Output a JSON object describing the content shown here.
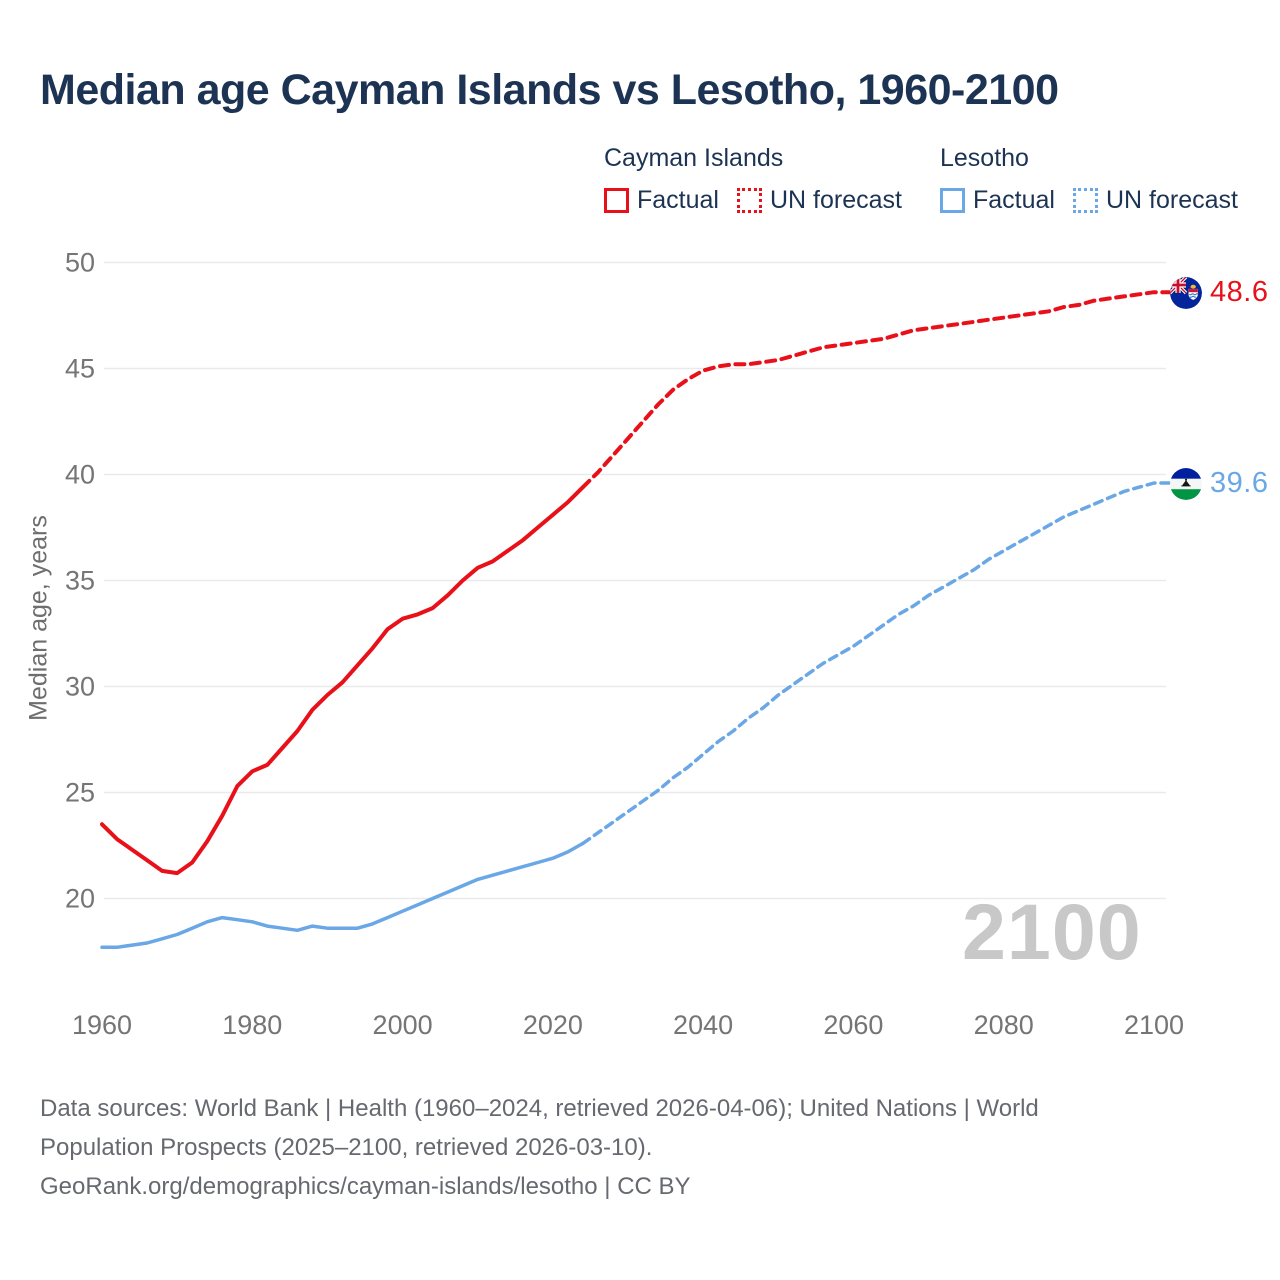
{
  "title": "Median age Cayman Islands vs Lesotho, 1960-2100",
  "legend": {
    "groups": [
      {
        "name": "Cayman Islands",
        "factual_label": "Factual",
        "forecast_label": "UN forecast",
        "color": "#e8111a"
      },
      {
        "name": "Lesotho",
        "factual_label": "Factual",
        "forecast_label": "UN forecast",
        "color": "#6aa7e6"
      }
    ]
  },
  "chart_data": {
    "type": "line",
    "title": "Median age Cayman Islands vs Lesotho, 1960-2100",
    "xlabel": "",
    "ylabel": "Median age, years",
    "watermark": "2100",
    "grid": "horizontal",
    "legend_position": "top-right",
    "xlim": [
      1953,
      2113
    ],
    "ylim": [
      17,
      51
    ],
    "x_ticks": [
      1960,
      1980,
      2000,
      2020,
      2040,
      2060,
      2080,
      2100
    ],
    "y_ticks": [
      20,
      25,
      30,
      35,
      40,
      45,
      50
    ],
    "series": [
      {
        "key": "cayman-factual",
        "name": "Cayman Islands — Factual",
        "style": "solid",
        "color": "#e8111a",
        "points": [
          [
            1960,
            23.5
          ],
          [
            1962,
            22.8
          ],
          [
            1964,
            22.3
          ],
          [
            1966,
            21.8
          ],
          [
            1968,
            21.3
          ],
          [
            1970,
            21.2
          ],
          [
            1972,
            21.7
          ],
          [
            1974,
            22.7
          ],
          [
            1976,
            23.9
          ],
          [
            1978,
            25.3
          ],
          [
            1980,
            26.0
          ],
          [
            1982,
            26.3
          ],
          [
            1984,
            27.1
          ],
          [
            1986,
            27.9
          ],
          [
            1988,
            28.9
          ],
          [
            1990,
            29.6
          ],
          [
            1992,
            30.2
          ],
          [
            1994,
            31.0
          ],
          [
            1996,
            31.8
          ],
          [
            1998,
            32.7
          ],
          [
            2000,
            33.2
          ],
          [
            2002,
            33.4
          ],
          [
            2004,
            33.7
          ],
          [
            2006,
            34.3
          ],
          [
            2008,
            35.0
          ],
          [
            2010,
            35.6
          ],
          [
            2012,
            35.9
          ],
          [
            2014,
            36.4
          ],
          [
            2016,
            36.9
          ],
          [
            2018,
            37.5
          ],
          [
            2020,
            38.1
          ],
          [
            2022,
            38.7
          ],
          [
            2024,
            39.4
          ]
        ]
      },
      {
        "key": "cayman-forecast",
        "name": "Cayman Islands — UN forecast",
        "style": "dashed",
        "color": "#e8111a",
        "points": [
          [
            2024,
            39.4
          ],
          [
            2026,
            40.1
          ],
          [
            2028,
            40.9
          ],
          [
            2030,
            41.7
          ],
          [
            2032,
            42.5
          ],
          [
            2034,
            43.3
          ],
          [
            2036,
            44.0
          ],
          [
            2038,
            44.5
          ],
          [
            2040,
            44.9
          ],
          [
            2042,
            45.1
          ],
          [
            2044,
            45.2
          ],
          [
            2046,
            45.2
          ],
          [
            2048,
            45.3
          ],
          [
            2050,
            45.4
          ],
          [
            2052,
            45.6
          ],
          [
            2054,
            45.8
          ],
          [
            2056,
            46.0
          ],
          [
            2058,
            46.1
          ],
          [
            2060,
            46.2
          ],
          [
            2062,
            46.3
          ],
          [
            2064,
            46.4
          ],
          [
            2066,
            46.6
          ],
          [
            2068,
            46.8
          ],
          [
            2070,
            46.9
          ],
          [
            2072,
            47.0
          ],
          [
            2074,
            47.1
          ],
          [
            2076,
            47.2
          ],
          [
            2078,
            47.3
          ],
          [
            2080,
            47.4
          ],
          [
            2082,
            47.5
          ],
          [
            2084,
            47.6
          ],
          [
            2086,
            47.7
          ],
          [
            2088,
            47.9
          ],
          [
            2090,
            48.0
          ],
          [
            2092,
            48.2
          ],
          [
            2094,
            48.3
          ],
          [
            2096,
            48.4
          ],
          [
            2098,
            48.5
          ],
          [
            2100,
            48.6
          ]
        ]
      },
      {
        "key": "lesotho-factual",
        "name": "Lesotho — Factual",
        "style": "solid",
        "color": "#6aa7e6",
        "points": [
          [
            1960,
            17.7
          ],
          [
            1962,
            17.7
          ],
          [
            1964,
            17.8
          ],
          [
            1966,
            17.9
          ],
          [
            1968,
            18.1
          ],
          [
            1970,
            18.3
          ],
          [
            1972,
            18.6
          ],
          [
            1974,
            18.9
          ],
          [
            1976,
            19.1
          ],
          [
            1978,
            19.0
          ],
          [
            1980,
            18.9
          ],
          [
            1982,
            18.7
          ],
          [
            1984,
            18.6
          ],
          [
            1986,
            18.5
          ],
          [
            1988,
            18.7
          ],
          [
            1990,
            18.6
          ],
          [
            1992,
            18.6
          ],
          [
            1994,
            18.6
          ],
          [
            1996,
            18.8
          ],
          [
            1998,
            19.1
          ],
          [
            2000,
            19.4
          ],
          [
            2002,
            19.7
          ],
          [
            2004,
            20.0
          ],
          [
            2006,
            20.3
          ],
          [
            2008,
            20.6
          ],
          [
            2010,
            20.9
          ],
          [
            2012,
            21.1
          ],
          [
            2014,
            21.3
          ],
          [
            2016,
            21.5
          ],
          [
            2018,
            21.7
          ],
          [
            2020,
            21.9
          ],
          [
            2022,
            22.2
          ],
          [
            2024,
            22.6
          ]
        ]
      },
      {
        "key": "lesotho-forecast",
        "name": "Lesotho — UN forecast",
        "style": "dashed",
        "color": "#6aa7e6",
        "points": [
          [
            2024,
            22.6
          ],
          [
            2026,
            23.1
          ],
          [
            2028,
            23.6
          ],
          [
            2030,
            24.1
          ],
          [
            2032,
            24.6
          ],
          [
            2034,
            25.1
          ],
          [
            2036,
            25.7
          ],
          [
            2038,
            26.2
          ],
          [
            2040,
            26.8
          ],
          [
            2042,
            27.4
          ],
          [
            2044,
            27.9
          ],
          [
            2046,
            28.5
          ],
          [
            2048,
            29.0
          ],
          [
            2050,
            29.6
          ],
          [
            2052,
            30.1
          ],
          [
            2054,
            30.6
          ],
          [
            2056,
            31.1
          ],
          [
            2058,
            31.5
          ],
          [
            2060,
            31.9
          ],
          [
            2062,
            32.4
          ],
          [
            2064,
            32.9
          ],
          [
            2066,
            33.4
          ],
          [
            2068,
            33.8
          ],
          [
            2070,
            34.3
          ],
          [
            2072,
            34.7
          ],
          [
            2074,
            35.1
          ],
          [
            2076,
            35.5
          ],
          [
            2078,
            36.0
          ],
          [
            2080,
            36.4
          ],
          [
            2082,
            36.8
          ],
          [
            2084,
            37.2
          ],
          [
            2086,
            37.6
          ],
          [
            2088,
            38.0
          ],
          [
            2090,
            38.3
          ],
          [
            2092,
            38.6
          ],
          [
            2094,
            38.9
          ],
          [
            2096,
            39.2
          ],
          [
            2098,
            39.4
          ],
          [
            2100,
            39.6
          ]
        ]
      }
    ],
    "end_labels": [
      {
        "series": "Cayman Islands",
        "value": "48.6",
        "color": "#e8111a",
        "flag": "cayman-islands"
      },
      {
        "series": "Lesotho",
        "value": "39.6",
        "color": "#6aa7e6",
        "flag": "lesotho"
      }
    ]
  },
  "footer": {
    "line1": "Data sources: World Bank | Health (1960–2024, retrieved 2026-04-06); United Nations | World",
    "line2": "Population Prospects (2025–2100, retrieved 2026-03-10).",
    "line3": "GeoRank.org/demographics/cayman-islands/lesotho | CC BY"
  }
}
